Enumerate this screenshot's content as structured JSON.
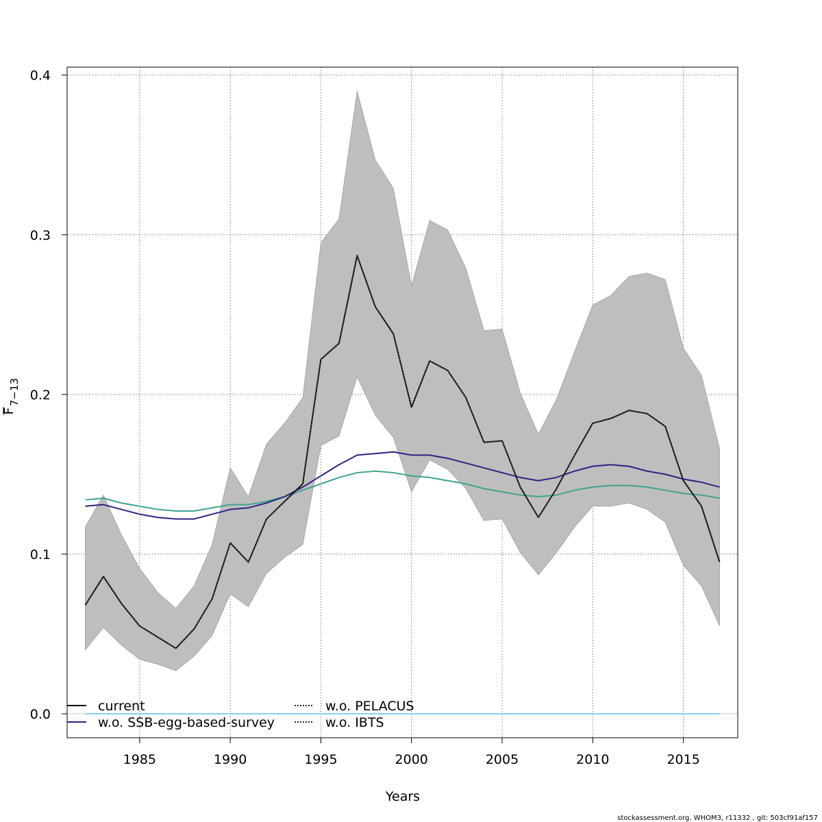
{
  "chart_data": {
    "type": "line",
    "xlabel": "Years",
    "ylabel_main": "F",
    "ylabel_sub": "7−13",
    "xlim": [
      1981,
      2018
    ],
    "ylim": [
      -0.015,
      0.405
    ],
    "x_ticks": [
      1985,
      1990,
      1995,
      2000,
      2005,
      2010,
      2015
    ],
    "x_tick_labels": [
      "1985",
      "1990",
      "1995",
      "2000",
      "2005",
      "2010",
      "2015"
    ],
    "y_ticks": [
      0.0,
      0.1,
      0.2,
      0.3,
      0.4
    ],
    "y_tick_labels": [
      "0.0",
      "0.1",
      "0.2",
      "0.3",
      "0.4"
    ],
    "grid": "dotted",
    "x": [
      1982,
      1983,
      1984,
      1985,
      1986,
      1987,
      1988,
      1989,
      1990,
      1991,
      1992,
      1993,
      1994,
      1995,
      1996,
      1997,
      1998,
      1999,
      2000,
      2001,
      2002,
      2003,
      2004,
      2005,
      2006,
      2007,
      2008,
      2009,
      2010,
      2011,
      2012,
      2013,
      2014,
      2015,
      2016,
      2017
    ],
    "band": {
      "color": "#bebebe",
      "lower": [
        0.04,
        0.054,
        0.043,
        0.034,
        0.031,
        0.027,
        0.036,
        0.049,
        0.075,
        0.067,
        0.088,
        0.098,
        0.106,
        0.168,
        0.174,
        0.211,
        0.187,
        0.173,
        0.139,
        0.159,
        0.153,
        0.141,
        0.121,
        0.122,
        0.101,
        0.087,
        0.101,
        0.117,
        0.13,
        0.13,
        0.132,
        0.128,
        0.12,
        0.093,
        0.08,
        0.055
      ],
      "upper": [
        0.117,
        0.137,
        0.112,
        0.091,
        0.076,
        0.066,
        0.08,
        0.106,
        0.154,
        0.136,
        0.169,
        0.182,
        0.198,
        0.295,
        0.31,
        0.39,
        0.347,
        0.329,
        0.268,
        0.309,
        0.303,
        0.279,
        0.24,
        0.241,
        0.201,
        0.175,
        0.197,
        0.227,
        0.256,
        0.262,
        0.274,
        0.276,
        0.272,
        0.229,
        0.212,
        0.166
      ]
    },
    "series": [
      {
        "name": "current",
        "color": "#000000",
        "dash": "solid",
        "values": [
          0.068,
          0.086,
          0.069,
          0.055,
          0.048,
          0.041,
          0.053,
          0.072,
          0.107,
          0.095,
          0.122,
          0.133,
          0.144,
          0.222,
          0.232,
          0.287,
          0.255,
          0.238,
          0.192,
          0.221,
          0.215,
          0.198,
          0.17,
          0.171,
          0.142,
          0.123,
          0.141,
          0.162,
          0.182,
          0.185,
          0.19,
          0.188,
          0.18,
          0.146,
          0.13,
          0.095
        ]
      },
      {
        "name": "w.o. SSB-egg-based-survey",
        "color": "#2e2285",
        "dash": "solid",
        "values": [
          0.13,
          0.131,
          0.128,
          0.125,
          0.123,
          0.122,
          0.122,
          0.125,
          0.128,
          0.129,
          0.132,
          0.136,
          0.142,
          0.149,
          0.156,
          0.162,
          0.163,
          0.164,
          0.162,
          0.162,
          0.16,
          0.157,
          0.154,
          0.151,
          0.148,
          0.146,
          0.148,
          0.152,
          0.155,
          0.156,
          0.155,
          0.152,
          0.15,
          0.147,
          0.145,
          0.142
        ]
      },
      {
        "name": "w.o. PELACUS",
        "color": "#87ceeb",
        "dash": "solid",
        "values": [
          0,
          0,
          0,
          0,
          0,
          0,
          0,
          0,
          0,
          0,
          0,
          0,
          0,
          0,
          0,
          0,
          0,
          0,
          0,
          0,
          0,
          0,
          0,
          0,
          0,
          0,
          0,
          0,
          0,
          0,
          0,
          0,
          0,
          0,
          0,
          0
        ]
      },
      {
        "name": "w.o. IBTS",
        "color": "#3fa391",
        "dash": "solid",
        "values": [
          0.134,
          0.135,
          0.132,
          0.13,
          0.128,
          0.127,
          0.127,
          0.129,
          0.131,
          0.131,
          0.133,
          0.136,
          0.14,
          0.144,
          0.148,
          0.151,
          0.152,
          0.151,
          0.149,
          0.148,
          0.146,
          0.144,
          0.141,
          0.139,
          0.137,
          0.136,
          0.137,
          0.14,
          0.142,
          0.143,
          0.143,
          0.142,
          0.14,
          0.138,
          0.137,
          0.135
        ]
      }
    ],
    "current_overlay": {
      "color": "#000000",
      "dash": "dotted"
    },
    "legend": {
      "placement": "bottom-left",
      "entries": [
        {
          "label": "current",
          "color": "#000000",
          "dash": "solid"
        },
        {
          "label": "w.o. SSB-egg-based-survey",
          "color": "#2e2285",
          "dash": "solid"
        },
        {
          "label": "w.o. PELACUS",
          "color": "#0b2c4a",
          "dash": "dotted"
        },
        {
          "label": "w.o. IBTS",
          "color": "#0f2e24",
          "dash": "dotted"
        }
      ]
    }
  },
  "footer": {
    "note": "stockassessment.org, WHOM3, r11332 , git: 503cf91af157"
  }
}
